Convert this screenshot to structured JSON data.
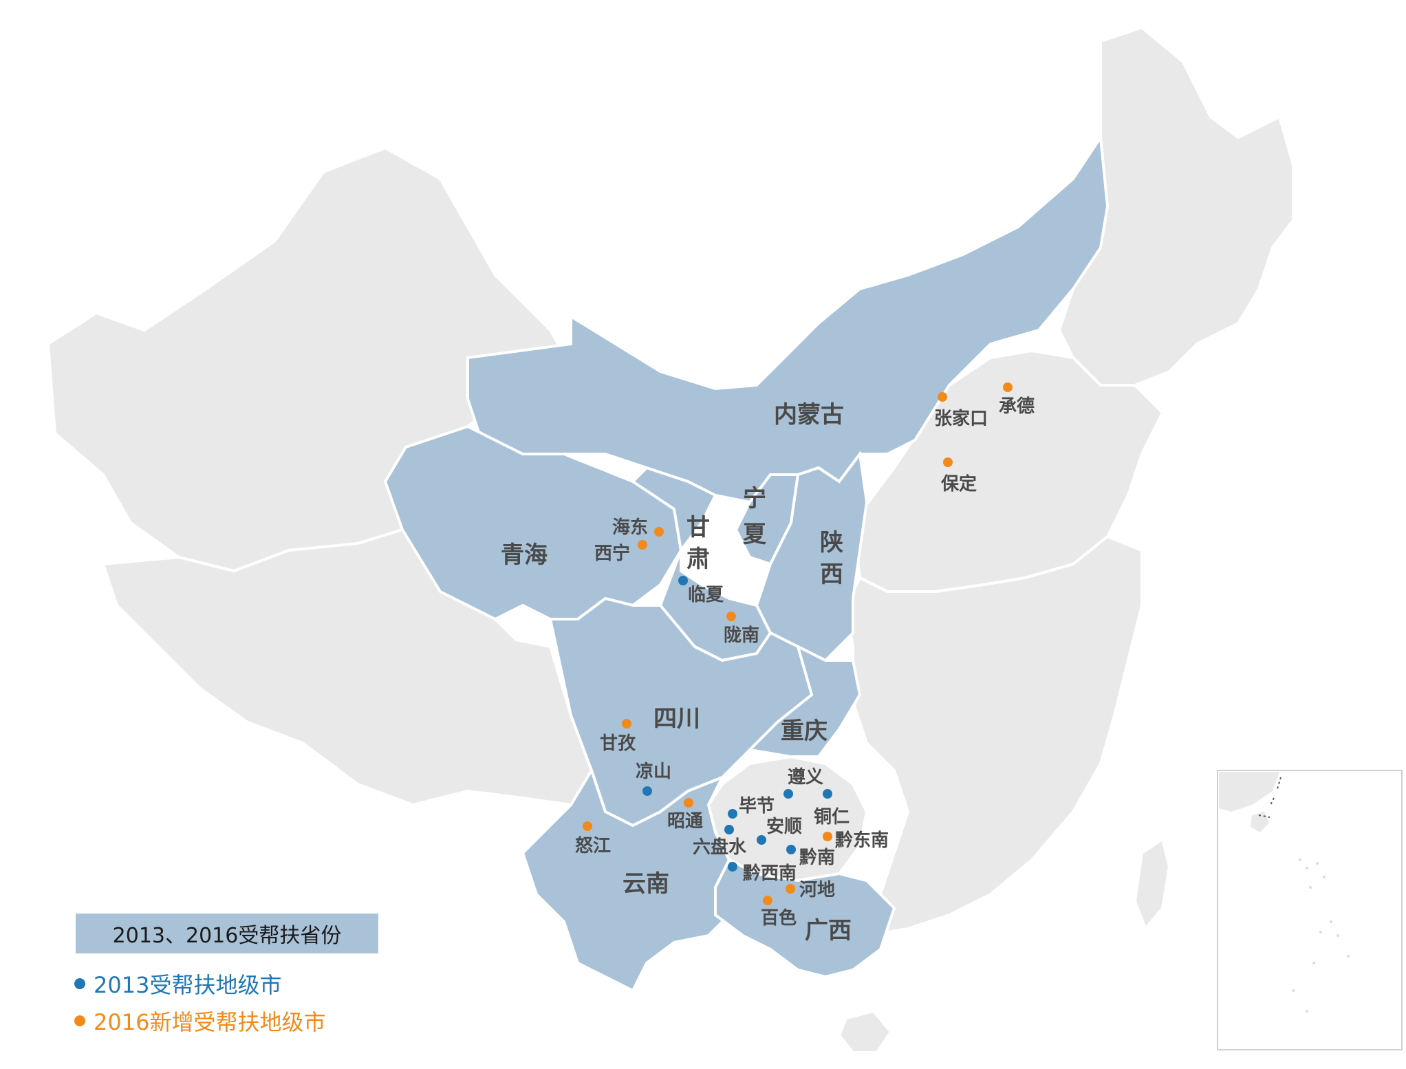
{
  "colors": {
    "background_land": "#e9e9e9",
    "highlight_land": "#a9c2d8",
    "border": "#ffffff",
    "dot_2013": "#1f77b4",
    "dot_2016": "#f28a1a",
    "legend_box": "#a9c2d8"
  },
  "provinces_highlighted": [
    {
      "id": "inner-mongolia",
      "name": "内蒙古"
    },
    {
      "id": "qinghai",
      "name": "青海"
    },
    {
      "id": "gansu",
      "name": "甘肃"
    },
    {
      "id": "ningxia",
      "name": "宁夏"
    },
    {
      "id": "shaanxi",
      "name": "陕西"
    },
    {
      "id": "sichuan",
      "name": "四川"
    },
    {
      "id": "chongqing",
      "name": "重庆"
    },
    {
      "id": "yunnan",
      "name": "云南"
    },
    {
      "id": "guangxi",
      "name": "广西"
    }
  ],
  "cities_2013": [
    {
      "id": "linxia",
      "name": "临夏"
    },
    {
      "id": "liangshan",
      "name": "凉山"
    },
    {
      "id": "zunyi",
      "name": "遵义"
    },
    {
      "id": "tongren",
      "name": "铜仁"
    },
    {
      "id": "bijie",
      "name": "毕节"
    },
    {
      "id": "anshun",
      "name": "安顺"
    },
    {
      "id": "liupanshui",
      "name": "六盘水"
    },
    {
      "id": "qiannan",
      "name": "黔南"
    },
    {
      "id": "qianxinan",
      "name": "黔西南"
    }
  ],
  "cities_2016": [
    {
      "id": "zhangjiakou",
      "name": "张家口"
    },
    {
      "id": "chengde",
      "name": "承德"
    },
    {
      "id": "baoding",
      "name": "保定"
    },
    {
      "id": "haidong",
      "name": "海东"
    },
    {
      "id": "xining",
      "name": "西宁"
    },
    {
      "id": "longnan",
      "name": "陇南"
    },
    {
      "id": "ganzi",
      "name": "甘孜"
    },
    {
      "id": "zhaotong",
      "name": "昭通"
    },
    {
      "id": "nujiang",
      "name": "怒江"
    },
    {
      "id": "qiandongnan",
      "name": "黔东南"
    },
    {
      "id": "hechi",
      "name": "河地"
    },
    {
      "id": "baise",
      "name": "百色"
    }
  ],
  "legend": {
    "title": "2013、2016受帮扶省份",
    "item_2013": "2013受帮扶地级市",
    "item_2016": "2016新增受帮扶地级市"
  }
}
